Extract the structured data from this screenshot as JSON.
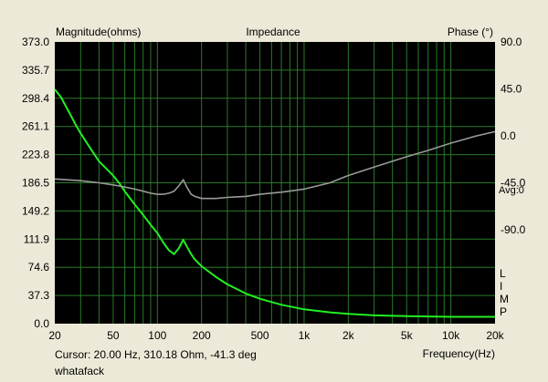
{
  "chart_data": {
    "type": "line",
    "title": "Impedance",
    "xlabel": "Frequency(Hz)",
    "ylabel_left": "Magnitude(ohms)",
    "ylabel_right": "Phase (°)",
    "x_scale": "log",
    "xlim": [
      20,
      20000
    ],
    "ylim_left": [
      0,
      373.0
    ],
    "ylim_right": [
      -180,
      90
    ],
    "x_ticks": [
      {
        "value": 20,
        "label": "20"
      },
      {
        "value": 50,
        "label": "50"
      },
      {
        "value": 100,
        "label": "100"
      },
      {
        "value": 200,
        "label": "200"
      },
      {
        "value": 500,
        "label": "500"
      },
      {
        "value": 1000,
        "label": "1k"
      },
      {
        "value": 2000,
        "label": "2k"
      },
      {
        "value": 5000,
        "label": "5k"
      },
      {
        "value": 10000,
        "label": "10k"
      },
      {
        "value": 20000,
        "label": "20k"
      }
    ],
    "y_ticks_left": [
      "0.0",
      "37.3",
      "74.6",
      "111.9",
      "149.2",
      "186.5",
      "223.8",
      "261.1",
      "298.4",
      "335.7",
      "373.0"
    ],
    "y_ticks_right": [
      {
        "value": 90,
        "label": "90.0"
      },
      {
        "value": 45,
        "label": "45.0"
      },
      {
        "value": 0,
        "label": "0.0"
      },
      {
        "value": -45,
        "label": "-45.0"
      },
      {
        "value": -90,
        "label": "-90.0"
      }
    ],
    "avg_label": "Avg:0",
    "side_letters": [
      "L",
      "I",
      "M",
      "P"
    ],
    "grid": true,
    "colors": {
      "background": "#000000",
      "grid": "#2a7a2a",
      "magnitude": "#22ee22",
      "phase": "#9a9a9a",
      "frame": "#ece9d8"
    },
    "series": [
      {
        "axis": "left",
        "x": [
          20,
          22,
          25,
          28,
          30,
          35,
          40,
          45,
          50,
          55,
          60,
          70,
          80,
          90,
          100,
          110,
          120,
          130,
          140,
          150,
          160,
          170,
          180,
          200,
          250,
          300,
          400,
          500,
          700,
          1000,
          1500,
          2000,
          3000,
          5000,
          7000,
          10000,
          15000,
          20000
        ],
        "values": [
          310.18,
          300,
          280,
          262,
          252,
          232,
          215,
          205,
          196,
          186,
          175,
          158,
          144,
          131,
          120,
          107,
          97,
          92,
          100,
          111,
          101,
          92,
          85,
          76,
          62,
          52,
          40,
          33,
          25,
          19,
          15,
          13,
          11,
          10,
          9.5,
          9,
          9,
          9
        ]
      },
      {
        "axis": "right",
        "x": [
          20,
          30,
          40,
          50,
          60,
          70,
          80,
          90,
          100,
          110,
          120,
          130,
          140,
          150,
          160,
          170,
          180,
          200,
          250,
          300,
          400,
          500,
          700,
          1000,
          1500,
          2000,
          3000,
          5000,
          7000,
          10000,
          15000,
          20000
        ],
        "values": [
          -41.3,
          -43,
          -45,
          -47,
          -49,
          -51,
          -53,
          -55,
          -56,
          -56,
          -55,
          -53,
          -48,
          -42,
          -50,
          -56,
          -58,
          -60,
          -60,
          -59,
          -58,
          -56,
          -54,
          -51,
          -45,
          -38,
          -30,
          -20,
          -14,
          -7,
          0,
          4
        ]
      }
    ]
  },
  "footer": {
    "cursor": "Cursor: 20.00 Hz, 310.18 Ohm, -41.3 deg",
    "name": "whatafack"
  }
}
